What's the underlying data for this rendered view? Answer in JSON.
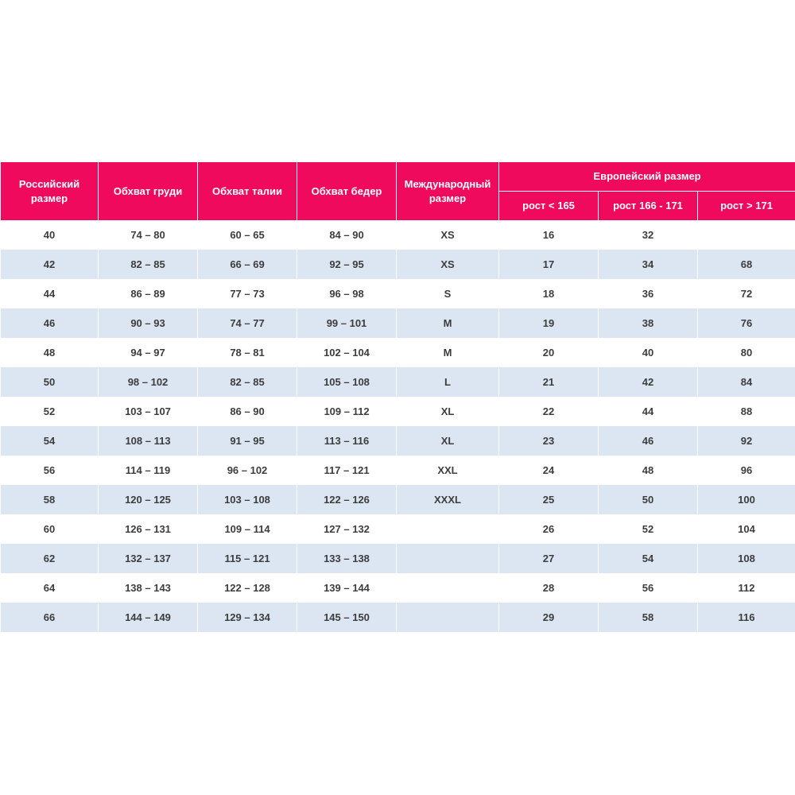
{
  "table": {
    "header": [
      "Российский размер",
      "Обхват груди",
      "Обхват талии",
      "Обхват бедер",
      "Международный размер"
    ],
    "group": "Европейский размер",
    "subheader": [
      "рост < 165",
      "рост 166 - 171",
      "рост > 171"
    ],
    "rows": [
      [
        "40",
        "74 – 80",
        "60 – 65",
        "84 – 90",
        "XS",
        "16",
        "32",
        null
      ],
      [
        "42",
        "82 – 85",
        "66 – 69",
        "92 – 95",
        "XS",
        "17",
        "34",
        "68"
      ],
      [
        "44",
        "86 – 89",
        "77 – 73",
        "96 – 98",
        "S",
        "18",
        "36",
        "72"
      ],
      [
        "46",
        "90 – 93",
        "74 – 77",
        "99 – 101",
        "M",
        "19",
        "38",
        "76"
      ],
      [
        "48",
        "94 – 97",
        "78 – 81",
        "102 – 104",
        "M",
        "20",
        "40",
        "80"
      ],
      [
        "50",
        "98 – 102",
        "82 – 85",
        "105 – 108",
        "L",
        "21",
        "42",
        "84"
      ],
      [
        "52",
        "103 – 107",
        "86 – 90",
        "109 – 112",
        "XL",
        "22",
        "44",
        "88"
      ],
      [
        "54",
        "108 – 113",
        "91 – 95",
        "113 – 116",
        "XL",
        "23",
        "46",
        "92"
      ],
      [
        "56",
        "114 – 119",
        "96 – 102",
        "117 – 121",
        "XXL",
        "24",
        "48",
        "96"
      ],
      [
        "58",
        "120 – 125",
        "103 – 108",
        "122 – 126",
        "XXXL",
        "25",
        "50",
        "100"
      ],
      [
        "60",
        "126 – 131",
        "109 – 114",
        "127 – 132",
        null,
        "26",
        "52",
        "104"
      ],
      [
        "62",
        "132 – 137",
        "115 – 121",
        "133 – 138",
        null,
        "27",
        "54",
        "108"
      ],
      [
        "64",
        "138 – 143",
        "122 – 128",
        "139 – 144",
        null,
        "28",
        "56",
        "112"
      ],
      [
        "66",
        "144 – 149",
        "129 – 134",
        "145 – 150",
        null,
        "29",
        "58",
        "116"
      ]
    ]
  }
}
